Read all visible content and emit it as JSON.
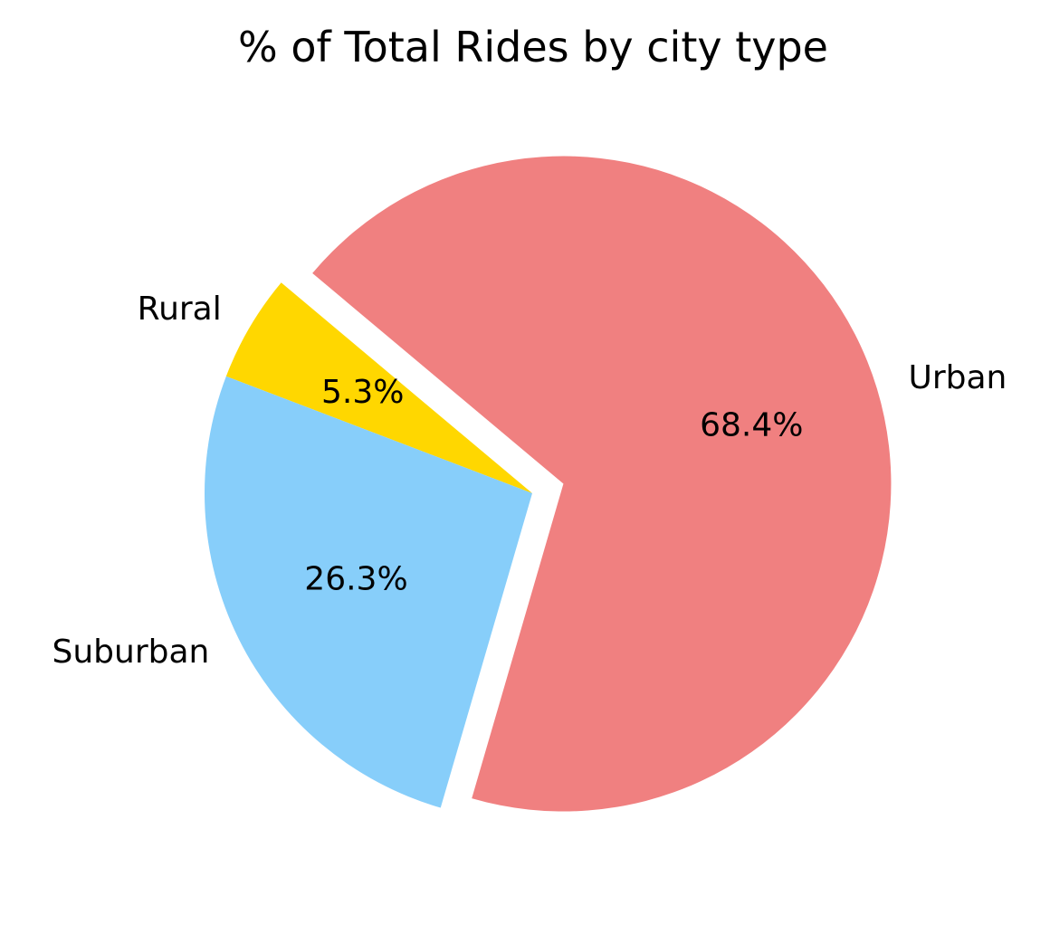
{
  "chart_data": {
    "type": "pie",
    "title": "% of Total Rides by city type",
    "slices": [
      {
        "label": "Rural",
        "value": 5.3,
        "pct_label": "5.3%",
        "color": "#FFD700",
        "explode": false
      },
      {
        "label": "Suburban",
        "value": 26.3,
        "pct_label": "26.3%",
        "color": "#87CEFA",
        "explode": false
      },
      {
        "label": "Urban",
        "value": 68.4,
        "pct_label": "68.4%",
        "color": "#F08080",
        "explode": true
      }
    ],
    "start_angle_deg": 140
  }
}
